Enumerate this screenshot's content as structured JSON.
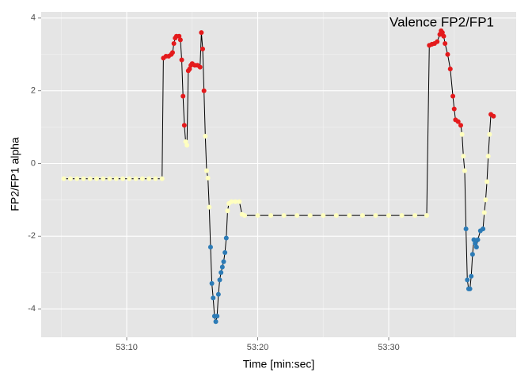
{
  "chart_data": {
    "type": "line",
    "title": "Valence FP2/FP1",
    "x_label": "Time [min:sec]",
    "y_label": "FP2/FP1 alpha",
    "x": [
      5.2,
      5.7,
      6.2,
      6.7,
      7.2,
      7.7,
      8.2,
      8.7,
      9.2,
      9.7,
      10.2,
      10.7,
      11.2,
      11.7,
      12.2,
      12.7,
      12.8,
      13.0,
      13.2,
      13.4,
      13.5,
      13.6,
      13.7,
      13.8,
      14.0,
      14.1,
      14.2,
      14.3,
      14.4,
      14.5,
      14.6,
      14.7,
      14.8,
      14.9,
      15.0,
      15.2,
      15.4,
      15.6,
      15.7,
      15.8,
      15.9,
      16.0,
      16.1,
      16.2,
      16.3,
      16.4,
      16.5,
      16.6,
      16.7,
      16.8,
      16.9,
      17.0,
      17.1,
      17.2,
      17.3,
      17.4,
      17.5,
      17.6,
      17.7,
      17.8,
      18.0,
      18.3,
      18.6,
      18.8,
      19,
      20,
      21,
      22,
      23,
      24,
      25,
      26,
      27,
      28,
      29,
      30,
      31,
      32,
      32.9,
      33.1,
      33.3,
      33.5,
      33.7,
      33.9,
      34.0,
      34.1,
      34.2,
      34.3,
      34.5,
      34.7,
      34.9,
      35.0,
      35.1,
      35.3,
      35.5,
      35.6,
      35.7,
      35.8,
      35.9,
      36.0,
      36.1,
      36.2,
      36.3,
      36.4,
      36.5,
      36.6,
      36.7,
      36.8,
      37.0,
      37.2,
      37.3,
      37.4,
      37.5,
      37.6,
      37.7,
      37.8,
      38.0
    ],
    "values": [
      -0.42,
      -0.42,
      -0.42,
      -0.42,
      -0.42,
      -0.42,
      -0.42,
      -0.42,
      -0.42,
      -0.42,
      -0.42,
      -0.42,
      -0.42,
      -0.42,
      -0.42,
      -0.42,
      2.9,
      2.95,
      2.95,
      3.0,
      3.05,
      3.3,
      3.45,
      3.5,
      3.5,
      3.4,
      2.85,
      1.85,
      1.05,
      0.6,
      0.5,
      2.55,
      2.6,
      2.7,
      2.75,
      2.7,
      2.7,
      2.65,
      3.6,
      3.15,
      2.0,
      0.75,
      -0.2,
      -0.4,
      -1.2,
      -2.3,
      -3.3,
      -3.7,
      -4.2,
      -4.35,
      -4.2,
      -3.6,
      -3.2,
      -3.0,
      -2.85,
      -2.7,
      -2.45,
      -2.05,
      -1.3,
      -1.1,
      -1.05,
      -1.05,
      -1.05,
      -1.4,
      -1.43,
      -1.43,
      -1.43,
      -1.43,
      -1.43,
      -1.43,
      -1.43,
      -1.43,
      -1.43,
      -1.43,
      -1.43,
      -1.43,
      -1.43,
      -1.43,
      -1.43,
      3.25,
      3.28,
      3.3,
      3.35,
      3.55,
      3.65,
      3.6,
      3.5,
      3.3,
      3.0,
      2.6,
      1.85,
      1.5,
      1.2,
      1.15,
      1.05,
      0.8,
      0.2,
      -0.2,
      -1.8,
      -3.2,
      -3.45,
      -3.45,
      -3.1,
      -2.5,
      -2.1,
      -2.2,
      -2.3,
      -2.1,
      -1.85,
      -1.8,
      -1.35,
      -1.0,
      -0.5,
      0.2,
      0.8,
      1.35,
      1.3
    ],
    "colors": [
      "#ffffbf",
      "#ffffbf",
      "#ffffbf",
      "#ffffbf",
      "#ffffbf",
      "#ffffbf",
      "#ffffbf",
      "#ffffbf",
      "#ffffbf",
      "#ffffbf",
      "#ffffbf",
      "#ffffbf",
      "#ffffbf",
      "#ffffbf",
      "#ffffbf",
      "#ffffbf",
      "#e41a1c",
      "#e41a1c",
      "#e41a1c",
      "#e41a1c",
      "#e41a1c",
      "#e41a1c",
      "#e41a1c",
      "#e41a1c",
      "#e41a1c",
      "#e41a1c",
      "#e41a1c",
      "#e41a1c",
      "#e41a1c",
      "#ffffbf",
      "#ffffbf",
      "#e41a1c",
      "#e41a1c",
      "#e41a1c",
      "#e41a1c",
      "#e41a1c",
      "#e41a1c",
      "#e41a1c",
      "#e41a1c",
      "#e41a1c",
      "#e41a1c",
      "#ffffbf",
      "#ffffbf",
      "#ffffbf",
      "#ffffbf",
      "#2c7bb6",
      "#2c7bb6",
      "#2c7bb6",
      "#2c7bb6",
      "#2c7bb6",
      "#2c7bb6",
      "#2c7bb6",
      "#2c7bb6",
      "#2c7bb6",
      "#2c7bb6",
      "#2c7bb6",
      "#2c7bb6",
      "#2c7bb6",
      "#ffffbf",
      "#ffffbf",
      "#ffffbf",
      "#ffffbf",
      "#ffffbf",
      "#ffffbf",
      "#ffffbf",
      "#ffffbf",
      "#ffffbf",
      "#ffffbf",
      "#ffffbf",
      "#ffffbf",
      "#ffffbf",
      "#ffffbf",
      "#ffffbf",
      "#ffffbf",
      "#ffffbf",
      "#ffffbf",
      "#ffffbf",
      "#ffffbf",
      "#ffffbf",
      "#e41a1c",
      "#e41a1c",
      "#e41a1c",
      "#e41a1c",
      "#e41a1c",
      "#e41a1c",
      "#e41a1c",
      "#e41a1c",
      "#e41a1c",
      "#e41a1c",
      "#e41a1c",
      "#e41a1c",
      "#e41a1c",
      "#e41a1c",
      "#e41a1c",
      "#e41a1c",
      "#ffffbf",
      "#ffffbf",
      "#ffffbf",
      "#2c7bb6",
      "#2c7bb6",
      "#2c7bb6",
      "#2c7bb6",
      "#2c7bb6",
      "#2c7bb6",
      "#2c7bb6",
      "#2c7bb6",
      "#2c7bb6",
      "#2c7bb6",
      "#2c7bb6",
      "#2c7bb6",
      "#ffffbf",
      "#ffffbf",
      "#ffffbf",
      "#ffffbf",
      "#ffffbf",
      "#e41a1c",
      "#e41a1c"
    ],
    "line_color": "#000000",
    "xlim": [
      3.47,
      39.73
    ],
    "ylim": [
      -4.78,
      4.17
    ],
    "xticks": [
      {
        "value": 10,
        "label": "53:10"
      },
      {
        "value": 20,
        "label": "53:20"
      },
      {
        "value": 30,
        "label": "53:30"
      }
    ],
    "yticks": [
      -4,
      -2,
      0,
      2,
      4
    ],
    "grid": true
  }
}
